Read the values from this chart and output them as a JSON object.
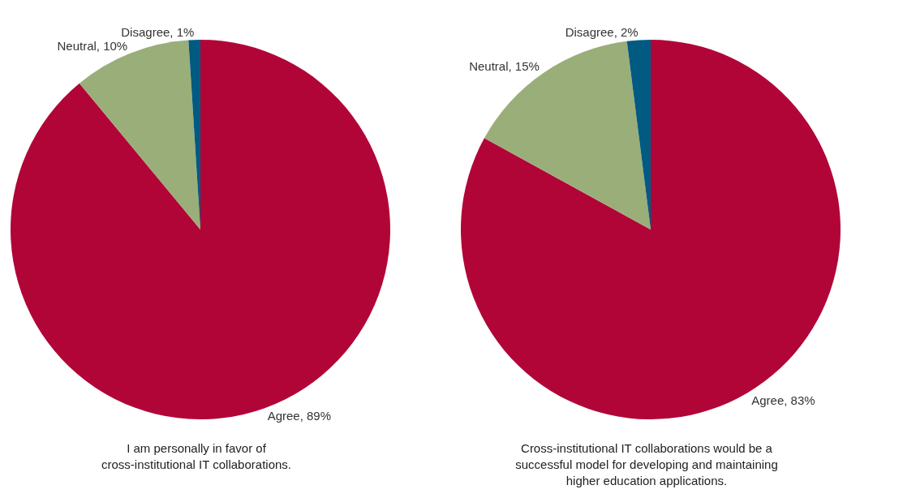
{
  "chart_data": [
    {
      "type": "pie",
      "title": "I am personally in favor of\ncross-institutional IT collaborations.",
      "categories": [
        "Agree",
        "Neutral",
        "Disagree"
      ],
      "values": [
        89,
        10,
        1
      ],
      "value_labels": [
        "89%",
        "10%",
        "1%"
      ],
      "colors": [
        "#b10538",
        "#9aae7a",
        "#005a82"
      ]
    },
    {
      "type": "pie",
      "title": "Cross-institutional IT collaborations would be a\nsuccessful model for developing and maintaining\nhigher education applications.",
      "categories": [
        "Agree",
        "Neutral",
        "Disagree"
      ],
      "values": [
        83,
        15,
        2
      ],
      "value_labels": [
        "83%",
        "15%",
        "2%"
      ],
      "colors": [
        "#b10538",
        "#9aae7a",
        "#005a82"
      ]
    }
  ]
}
